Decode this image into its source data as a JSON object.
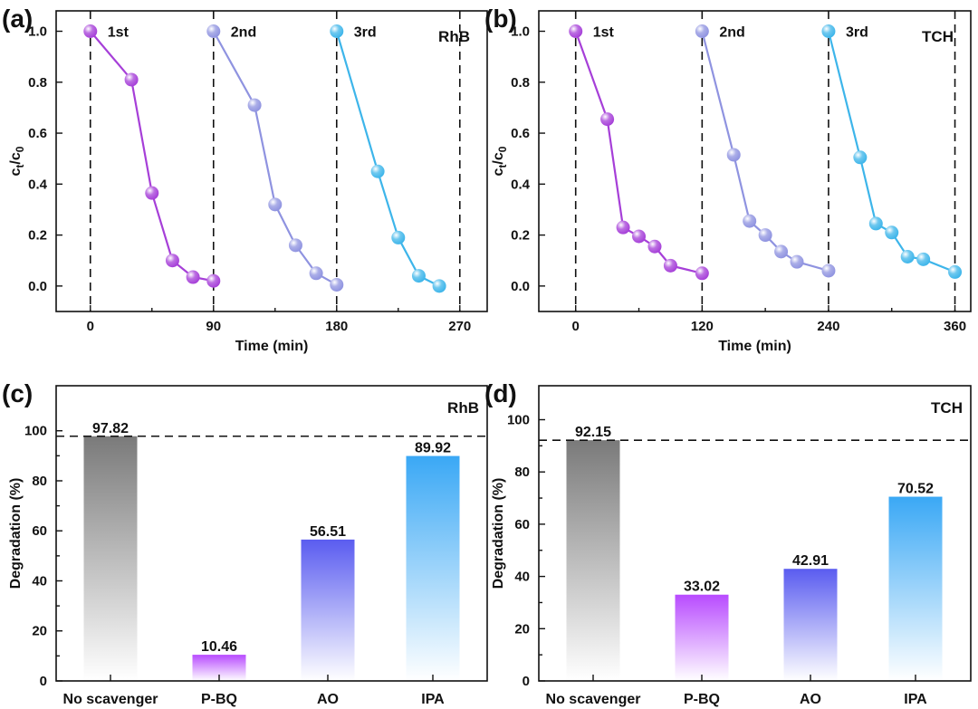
{
  "chart_data": [
    {
      "type": "line",
      "panel": "(a)",
      "tag": "RhB",
      "xlabel": "Time (min)",
      "ylabel": "ct/c0",
      "xlim": [
        -25,
        290
      ],
      "ylim": [
        -0.1,
        1.08
      ],
      "xticks": [
        0,
        90,
        180,
        270
      ],
      "yticks": [
        0.0,
        0.2,
        0.4,
        0.6,
        0.8,
        1.0
      ],
      "cycle_lines": [
        0,
        90,
        180,
        270
      ],
      "series": [
        {
          "name": "1st",
          "color": "#a63fd8",
          "x": [
            0,
            30,
            45,
            60,
            75,
            90
          ],
          "y": [
            1.0,
            0.81,
            0.365,
            0.1,
            0.035,
            0.02
          ]
        },
        {
          "name": "2nd",
          "color": "#8f93e0",
          "x": [
            90,
            120,
            135,
            150,
            165,
            180
          ],
          "y": [
            1.0,
            0.71,
            0.32,
            0.16,
            0.05,
            0.005
          ]
        },
        {
          "name": "3rd",
          "color": "#3db5ea",
          "x": [
            180,
            210,
            225,
            240,
            255
          ],
          "y": [
            1.0,
            0.45,
            0.19,
            0.04,
            0.0
          ]
        }
      ]
    },
    {
      "type": "line",
      "panel": "(b)",
      "tag": "TCH",
      "xlabel": "Time (min)",
      "ylabel": "ct/c0",
      "xlim": [
        -35,
        375
      ],
      "ylim": [
        -0.1,
        1.08
      ],
      "xticks": [
        0,
        120,
        240,
        360
      ],
      "yticks": [
        0.0,
        0.2,
        0.4,
        0.6,
        0.8,
        1.0
      ],
      "cycle_lines": [
        0,
        120,
        240,
        360
      ],
      "series": [
        {
          "name": "1st",
          "color": "#a63fd8",
          "x": [
            0,
            30,
            45,
            60,
            75,
            90,
            120
          ],
          "y": [
            1.0,
            0.655,
            0.23,
            0.195,
            0.155,
            0.08,
            0.05
          ]
        },
        {
          "name": "2nd",
          "color": "#8f93e0",
          "x": [
            120,
            150,
            165,
            180,
            195,
            210,
            240
          ],
          "y": [
            1.0,
            0.515,
            0.255,
            0.2,
            0.135,
            0.095,
            0.06
          ]
        },
        {
          "name": "3rd",
          "color": "#3db5ea",
          "x": [
            240,
            270,
            285,
            300,
            315,
            330,
            360
          ],
          "y": [
            1.0,
            0.505,
            0.245,
            0.21,
            0.115,
            0.105,
            0.055
          ]
        }
      ]
    },
    {
      "type": "bar",
      "panel": "(c)",
      "tag": "RhB",
      "xlabel": "",
      "ylabel": "Degradation (%)",
      "ylim": [
        0,
        118
      ],
      "yticks": [
        0,
        20,
        40,
        60,
        80,
        100
      ],
      "reference_line": 97.82,
      "categories": [
        "No scavenger",
        "P-BQ",
        "AO",
        "IPA"
      ],
      "values": [
        97.82,
        10.46,
        56.51,
        89.92
      ],
      "value_labels": [
        "97.82",
        "10.46",
        "56.51",
        "89.92"
      ],
      "colors": [
        "#7a7a7a",
        "#b84bff",
        "#5a5cf0",
        "#3aa8f5"
      ]
    },
    {
      "type": "bar",
      "panel": "(d)",
      "tag": "TCH",
      "xlabel": "",
      "ylabel": "Degradation (%)",
      "ylim": [
        0,
        113
      ],
      "yticks": [
        0,
        20,
        40,
        60,
        80,
        100
      ],
      "reference_line": 92.15,
      "categories": [
        "No scavenger",
        "P-BQ",
        "AO",
        "IPA"
      ],
      "values": [
        92.15,
        33.02,
        42.91,
        70.52
      ],
      "value_labels": [
        "92.15",
        "33.02",
        "42.91",
        "70.52"
      ],
      "colors": [
        "#7a7a7a",
        "#b84bff",
        "#5a5cf0",
        "#3aa8f5"
      ]
    }
  ]
}
